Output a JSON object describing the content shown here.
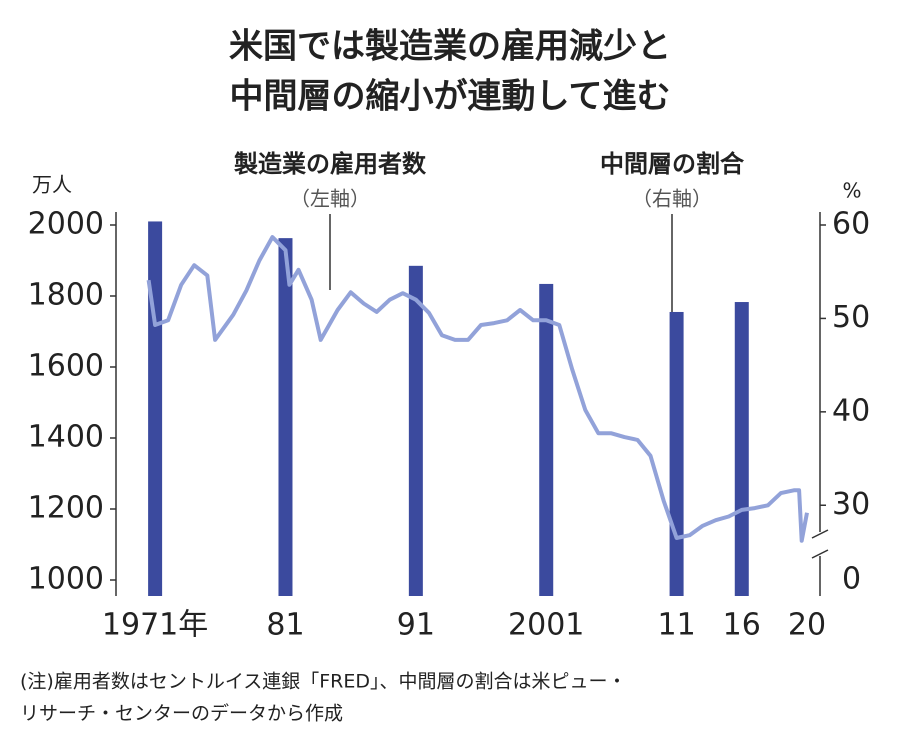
{
  "chart_data": {
    "type": "bar_line",
    "title": [
      "米国では製造業の雇用減少と",
      "中間層の縮小が連動して進む"
    ],
    "y_unit": "万人",
    "y2_unit": "%",
    "annotations": [
      {
        "text": "製造業の雇用者数",
        "sub": "（左軸）"
      },
      {
        "text": "中間層の割合",
        "sub": "（右軸）"
      }
    ],
    "note": [
      "(注)雇用者数はセントルイス連銀「FRED」、中間層の割合は米ピュー・",
      "リサーチ・センターのデータから作成"
    ],
    "xlim": [
      1968,
      2022
    ],
    "xticks": [
      {
        "value": 1971,
        "label": "1971年"
      },
      81,
      91,
      2001,
      11,
      16,
      20
    ],
    "ylim": [
      1000,
      2000
    ],
    "yticks": [
      1000,
      1200,
      1400,
      1600,
      1800,
      2000
    ],
    "y2lim": [
      22,
      60
    ],
    "y2ticks": [
      30,
      40,
      50,
      60
    ],
    "y2_break_tick": 0,
    "series": [
      {
        "type": "bar",
        "color": "#3b4a9e",
        "x": [
          1971,
          1981,
          1991,
          2001,
          2011,
          2016
        ],
        "values": [
          2010,
          1963,
          1885,
          1834,
          1755,
          1783
        ]
      },
      {
        "type": "line",
        "axis": "y2",
        "color": "#92a2d9",
        "x": [
          1970.5,
          1971,
          1972,
          1973,
          1974,
          1975,
          1975.6,
          1977,
          1978,
          1979,
          1980,
          1981,
          1981.3,
          1982,
          1983,
          1983.7,
          1985,
          1986,
          1987,
          1988,
          1989,
          1990,
          1991,
          1992,
          1993,
          1994,
          1995,
          1996,
          1997,
          1998,
          1999,
          2000,
          2001,
          2002,
          2003,
          2004,
          2005,
          2006,
          2007,
          2008,
          2009,
          2010,
          2011,
          2012,
          2013,
          2014,
          2015,
          2016,
          2017,
          2018,
          2019,
          2020,
          2020.4,
          2020.6,
          2021
        ],
        "values": [
          54.1,
          49.3,
          49.8,
          53.6,
          55.7,
          54.6,
          47.7,
          50.4,
          53.0,
          56.2,
          58.7,
          57.3,
          53.6,
          55.2,
          52.0,
          47.7,
          50.9,
          52.8,
          51.6,
          50.7,
          52.0,
          52.7,
          52.0,
          50.6,
          48.2,
          47.7,
          47.7,
          49.3,
          49.5,
          49.8,
          50.9,
          49.8,
          49.8,
          49.3,
          44.5,
          40.2,
          37.7,
          37.7,
          37.3,
          37.0,
          35.3,
          30.5,
          26.5,
          26.8,
          27.8,
          28.4,
          28.8,
          29.5,
          29.7,
          30.0,
          31.3,
          31.6,
          31.6,
          26.2,
          29.2
        ]
      }
    ]
  }
}
